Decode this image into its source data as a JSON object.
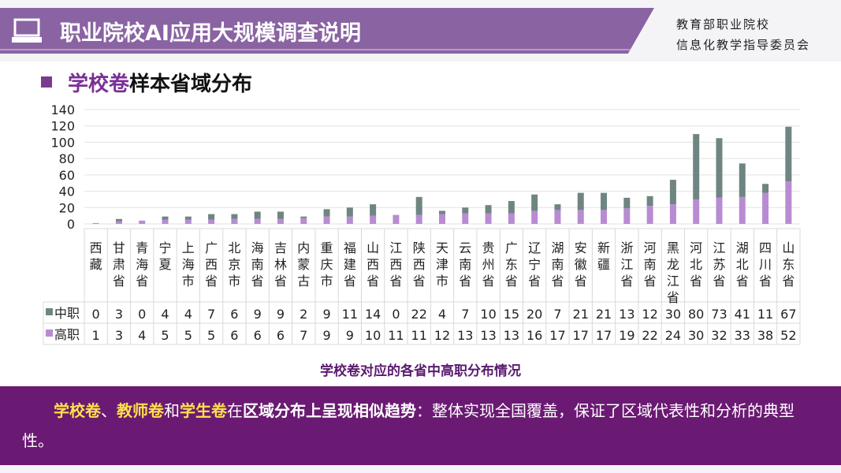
{
  "header": {
    "title": "职业院校AI应用大规模调查说明",
    "org_line1": "教育部职业院校",
    "org_line2": "信息化教学指导委员会"
  },
  "subhead": {
    "highlight": "学校卷",
    "rest": "样本省域分布"
  },
  "caption": "学校卷对应的各省中高职分布情况",
  "summary": {
    "p1": "学校卷",
    "p2": "、",
    "p3": "教师卷",
    "p4": "和",
    "p5": "学生卷",
    "p6": "在",
    "p7": "区域分布上呈现相似趋势",
    "p8": "：整体实现全国覆盖，保证了区域代表性和分析的典型性。"
  },
  "colors": {
    "banner": "#8a63a3",
    "bottom": "#6a1a72",
    "zhongzhi": "#6f8582",
    "gaozhi": "#b88bd2"
  },
  "chart_data": {
    "type": "bar",
    "stacked": true,
    "categories": [
      "西藏",
      "甘肃省",
      "青海省",
      "宁夏",
      "上海市",
      "广西省",
      "北京市",
      "海南省",
      "吉林省",
      "内蒙古",
      "重庆市",
      "福建省",
      "山西省",
      "江西省",
      "陕西省",
      "天津市",
      "云南省",
      "贵州省",
      "广东省",
      "辽宁省",
      "湖南省",
      "安徽省",
      "新疆",
      "浙江省",
      "河南省",
      "黑龙江省",
      "河北省",
      "江苏省",
      "湖北省",
      "四川省",
      "山东省"
    ],
    "series": [
      {
        "name": "高职",
        "values": [
          1,
          3,
          4,
          5,
          5,
          5,
          6,
          6,
          6,
          7,
          9,
          9,
          10,
          11,
          11,
          12,
          13,
          13,
          13,
          16,
          17,
          17,
          17,
          19,
          22,
          24,
          30,
          32,
          33,
          38,
          52
        ]
      },
      {
        "name": "中职",
        "values": [
          0,
          3,
          0,
          4,
          4,
          7,
          6,
          9,
          9,
          2,
          9,
          11,
          14,
          0,
          22,
          4,
          7,
          10,
          15,
          20,
          7,
          21,
          21,
          13,
          12,
          30,
          80,
          73,
          41,
          11,
          67
        ]
      }
    ],
    "yticks": [
      "0",
      "20",
      "40",
      "60",
      "80",
      "100",
      "120",
      "140"
    ],
    "ylim": [
      0,
      140
    ],
    "grid": true,
    "legend": "data-table"
  }
}
